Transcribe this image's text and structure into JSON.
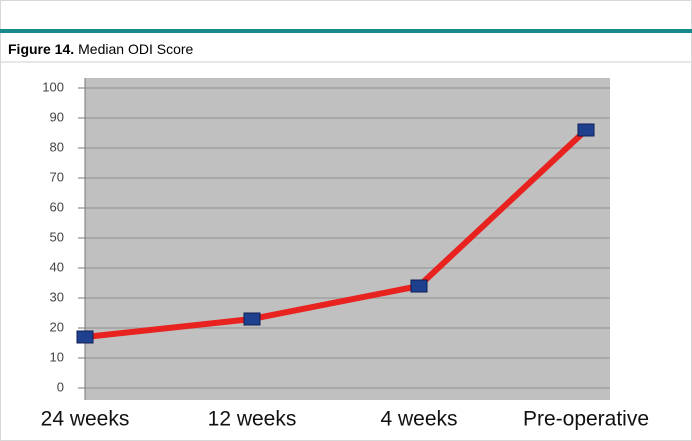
{
  "chart_data": {
    "type": "line",
    "figure_label": "Figure 14.",
    "title": "Median ODI Score",
    "categories": [
      "24 weeks",
      "12 weeks",
      "4 weeks",
      "Pre-operative"
    ],
    "series": [
      {
        "name": "Median ODI",
        "color": "#e8231f",
        "values": [
          17,
          23,
          34,
          86
        ]
      }
    ],
    "marker_color": "#1f3f8f",
    "ylim": [
      0,
      100
    ],
    "yticks": [
      0,
      10,
      20,
      30,
      40,
      50,
      60,
      70,
      80,
      90,
      100
    ],
    "grid": true
  }
}
